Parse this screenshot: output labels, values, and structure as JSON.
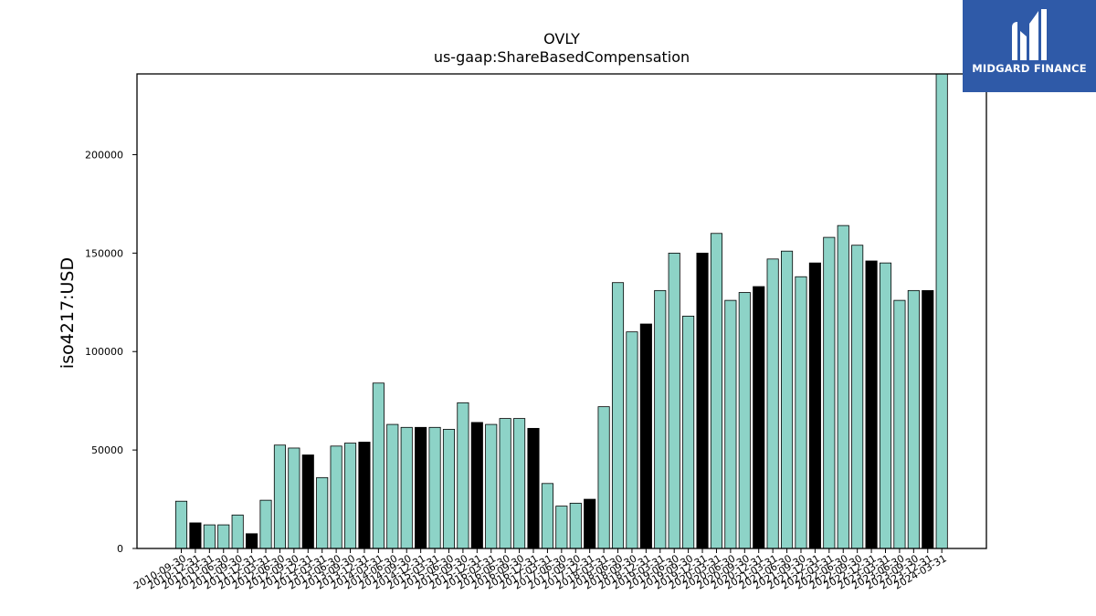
{
  "chart_data": {
    "type": "bar",
    "title": "OVLY",
    "subtitle": "us-gaap:ShareBasedCompensation",
    "xlabel": "",
    "ylabel": "iso4217:USD",
    "ylim": [
      0,
      241000
    ],
    "yticks": [
      0,
      50000,
      100000,
      150000,
      200000
    ],
    "colors": {
      "default": "#8dd3c7",
      "highlight": "#000000",
      "edge": "#000000"
    },
    "categories": [
      "2010-09-30",
      "2010-12-31",
      "2011-03-31",
      "2011-06-30",
      "2011-09-30",
      "2011-12-31",
      "2012-03-31",
      "2012-06-30",
      "2012-09-30",
      "2012-12-31",
      "2013-03-31",
      "2013-06-30",
      "2013-09-30",
      "2013-12-31",
      "2014-03-31",
      "2014-06-30",
      "2014-09-30",
      "2014-12-31",
      "2015-03-31",
      "2015-06-30",
      "2015-09-30",
      "2015-12-31",
      "2016-03-31",
      "2016-06-30",
      "2016-09-30",
      "2016-12-31",
      "2017-03-31",
      "2017-06-30",
      "2017-09-30",
      "2017-12-31",
      "2018-03-31",
      "2018-06-30",
      "2018-09-30",
      "2018-12-31",
      "2019-03-31",
      "2019-06-30",
      "2019-09-30",
      "2019-12-31",
      "2020-03-31",
      "2020-06-30",
      "2020-09-30",
      "2020-12-31",
      "2021-03-31",
      "2021-06-30",
      "2021-09-30",
      "2021-12-31",
      "2022-03-31",
      "2022-06-30",
      "2022-09-30",
      "2022-12-31",
      "2023-03-31",
      "2023-06-30",
      "2023-09-30",
      "2023-12-31",
      "2024-03-31"
    ],
    "values": [
      24000,
      13000,
      12000,
      12000,
      17000,
      7500,
      24500,
      52500,
      51000,
      47500,
      36000,
      52000,
      53500,
      54000,
      84000,
      63000,
      61500,
      61500,
      61500,
      60500,
      74000,
      64000,
      63000,
      66000,
      66000,
      61000,
      33000,
      21500,
      23000,
      25000,
      72000,
      135000,
      110000,
      114000,
      131000,
      150000,
      118000,
      150000,
      160000,
      126000,
      130000,
      133000,
      147000,
      151000,
      138000,
      145000,
      158000,
      164000,
      154000,
      146000,
      145000,
      126000,
      131000,
      131000,
      241000
    ],
    "highlight": [
      false,
      true,
      false,
      false,
      false,
      true,
      false,
      false,
      false,
      true,
      false,
      false,
      false,
      true,
      false,
      false,
      false,
      true,
      false,
      false,
      false,
      true,
      false,
      false,
      false,
      true,
      false,
      false,
      false,
      true,
      false,
      false,
      false,
      true,
      false,
      false,
      false,
      true,
      false,
      false,
      false,
      true,
      false,
      false,
      false,
      true,
      false,
      false,
      false,
      true,
      false,
      false,
      false,
      true,
      false
    ]
  },
  "logo": {
    "text": "MIDGARD FINANCE"
  }
}
